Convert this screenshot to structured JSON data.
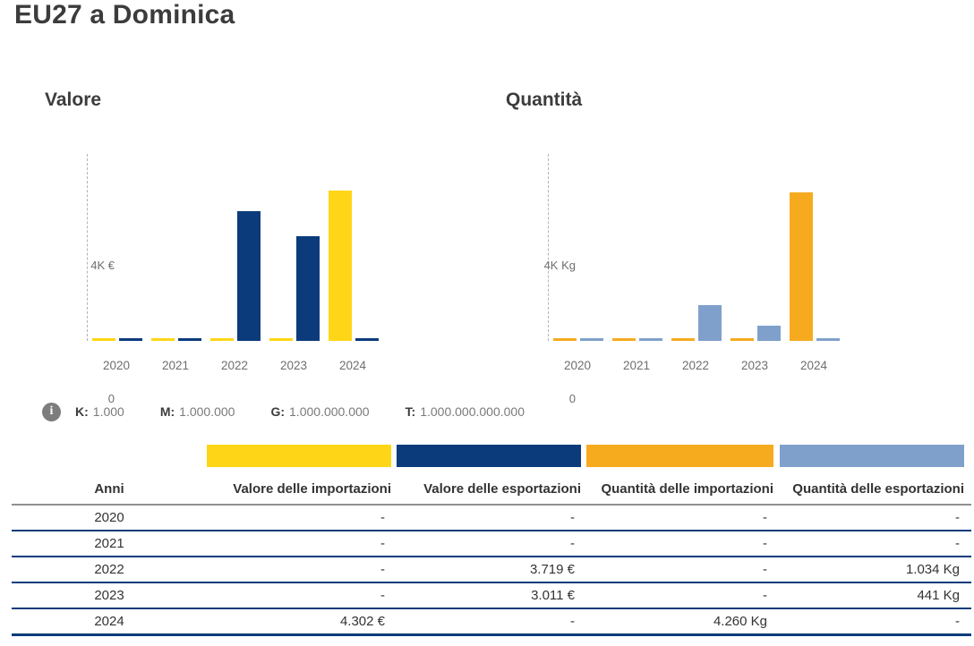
{
  "header": {
    "title": "EU27 a Dominica"
  },
  "icons": {
    "info_glyph": "i"
  },
  "chart_data": [
    {
      "type": "bar",
      "title": "Valore",
      "y_tick_labels": [
        "4K €",
        "0"
      ],
      "ymax": 4000,
      "grid": false,
      "legend_position": "none",
      "categories": [
        "2020",
        "2021",
        "2022",
        "2023",
        "2024"
      ],
      "series": [
        {
          "name": "Valore delle importazioni",
          "color": "#FFD617",
          "values": [
            null,
            null,
            null,
            null,
            4302
          ]
        },
        {
          "name": "Valore delle esportazioni",
          "color": "#0C3B7C",
          "values": [
            null,
            null,
            3719,
            3011,
            null
          ]
        }
      ]
    },
    {
      "type": "bar",
      "title": "Quantità",
      "y_tick_labels": [
        "4K Kg",
        "0"
      ],
      "ymax": 4000,
      "grid": false,
      "legend_position": "none",
      "categories": [
        "2020",
        "2021",
        "2022",
        "2023",
        "2024"
      ],
      "series": [
        {
          "name": "Quantità delle importazioni",
          "color": "#F6AB1F",
          "values": [
            null,
            null,
            null,
            null,
            4260
          ]
        },
        {
          "name": "Quantità delle esportazioni",
          "color": "#7FA0CB",
          "values": [
            null,
            null,
            1034,
            441,
            null
          ]
        }
      ]
    }
  ],
  "unit_legend": {
    "items": [
      {
        "key": "K:",
        "value": "1.000"
      },
      {
        "key": "M:",
        "value": "1.000.000"
      },
      {
        "key": "G:",
        "value": "1.000.000.000"
      },
      {
        "key": "T:",
        "value": "1.000.000.000.000"
      }
    ]
  },
  "table": {
    "columns": [
      "Anni",
      "Valore delle importazioni",
      "Valore delle esportazioni",
      "Quantità delle importazioni",
      "Quantità delle esportazioni"
    ],
    "column_colors": [
      null,
      "#FFD617",
      "#0C3B7C",
      "#F6AB1F",
      "#7FA0CB"
    ],
    "rows": [
      [
        "2020",
        "-",
        "-",
        "-",
        "-"
      ],
      [
        "2021",
        "-",
        "-",
        "-",
        "-"
      ],
      [
        "2022",
        "-",
        "3.719 €",
        "-",
        "1.034 Kg"
      ],
      [
        "2023",
        "-",
        "3.011 €",
        "-",
        "441 Kg"
      ],
      [
        "2024",
        "4.302 €",
        "-",
        "4.260 Kg",
        "-"
      ]
    ]
  }
}
